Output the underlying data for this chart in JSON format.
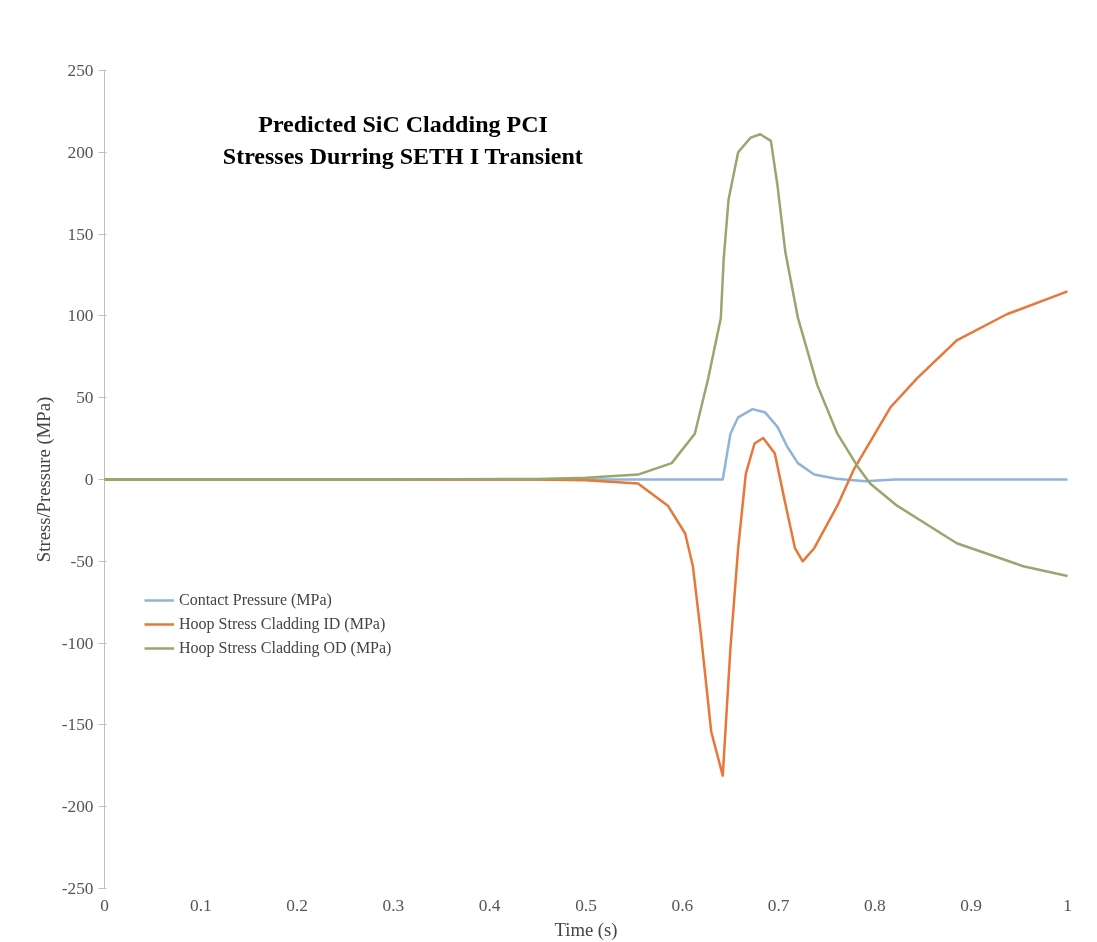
{
  "chart_data": {
    "type": "line",
    "title": "Predicted SiC Cladding PCI\nStresses Durring SETH I Transient",
    "xlabel": "Time (s)",
    "ylabel": "Stress/Pressure (MPa)",
    "xlim": [
      0,
      1
    ],
    "xticks": [
      0,
      0.1,
      0.2,
      0.3,
      0.4,
      0.5,
      0.6,
      0.7,
      0.8,
      0.9,
      1
    ],
    "ylim": [
      -250,
      250
    ],
    "yticks": [
      -250,
      -200,
      -150,
      -100,
      -50,
      0,
      50,
      100,
      150,
      200,
      250
    ],
    "grid": false,
    "legend": "left",
    "line_style": "solid",
    "marker": "none",
    "series": [
      {
        "name": "Contact Pressure (MPa)",
        "color": "#8fb4d9",
        "x": [
          0,
          0.3,
          0.6,
          0.642,
          0.65,
          0.658,
          0.673,
          0.686,
          0.699,
          0.709,
          0.72,
          0.737,
          0.76,
          0.79,
          0.82,
          1
        ],
        "values": [
          0,
          0,
          0,
          0,
          28,
          38,
          43,
          41,
          32,
          20,
          10,
          3,
          0.5,
          -1,
          0,
          0
        ]
      },
      {
        "name": "Hoop Stress Cladding ID (MPa)",
        "color": "#e8773a",
        "x": [
          0,
          0.3,
          0.45,
          0.5,
          0.554,
          0.585,
          0.603,
          0.611,
          0.619,
          0.63,
          0.642,
          0.65,
          0.658,
          0.666,
          0.675,
          0.684,
          0.696,
          0.706,
          0.717,
          0.725,
          0.737,
          0.761,
          0.778,
          0.816,
          0.844,
          0.885,
          0.937,
          1
        ],
        "values": [
          0,
          0,
          0,
          -0.5,
          -2.4,
          -16,
          -33,
          -53,
          -93,
          -154,
          -181,
          -103,
          -42,
          3.6,
          22,
          25.4,
          16,
          -12,
          -42,
          -50,
          -42,
          -16,
          6,
          44,
          62,
          85,
          101,
          115
        ]
      },
      {
        "name": "Hoop Stress Cladding OD (MPa)",
        "color": "#9aa56f",
        "x": [
          0,
          0.3,
          0.45,
          0.5,
          0.554,
          0.589,
          0.613,
          0.627,
          0.64,
          0.643,
          0.648,
          0.658,
          0.671,
          0.681,
          0.692,
          0.699,
          0.707,
          0.72,
          0.74,
          0.761,
          0.782,
          0.795,
          0.823,
          0.885,
          0.954,
          1
        ],
        "values": [
          0,
          0,
          0.3,
          1,
          3,
          10,
          28,
          62,
          98.7,
          135,
          171,
          200,
          209,
          211,
          207,
          179,
          139,
          99,
          58,
          28,
          8,
          -2.4,
          -16,
          -39,
          -53,
          -59
        ]
      }
    ]
  }
}
